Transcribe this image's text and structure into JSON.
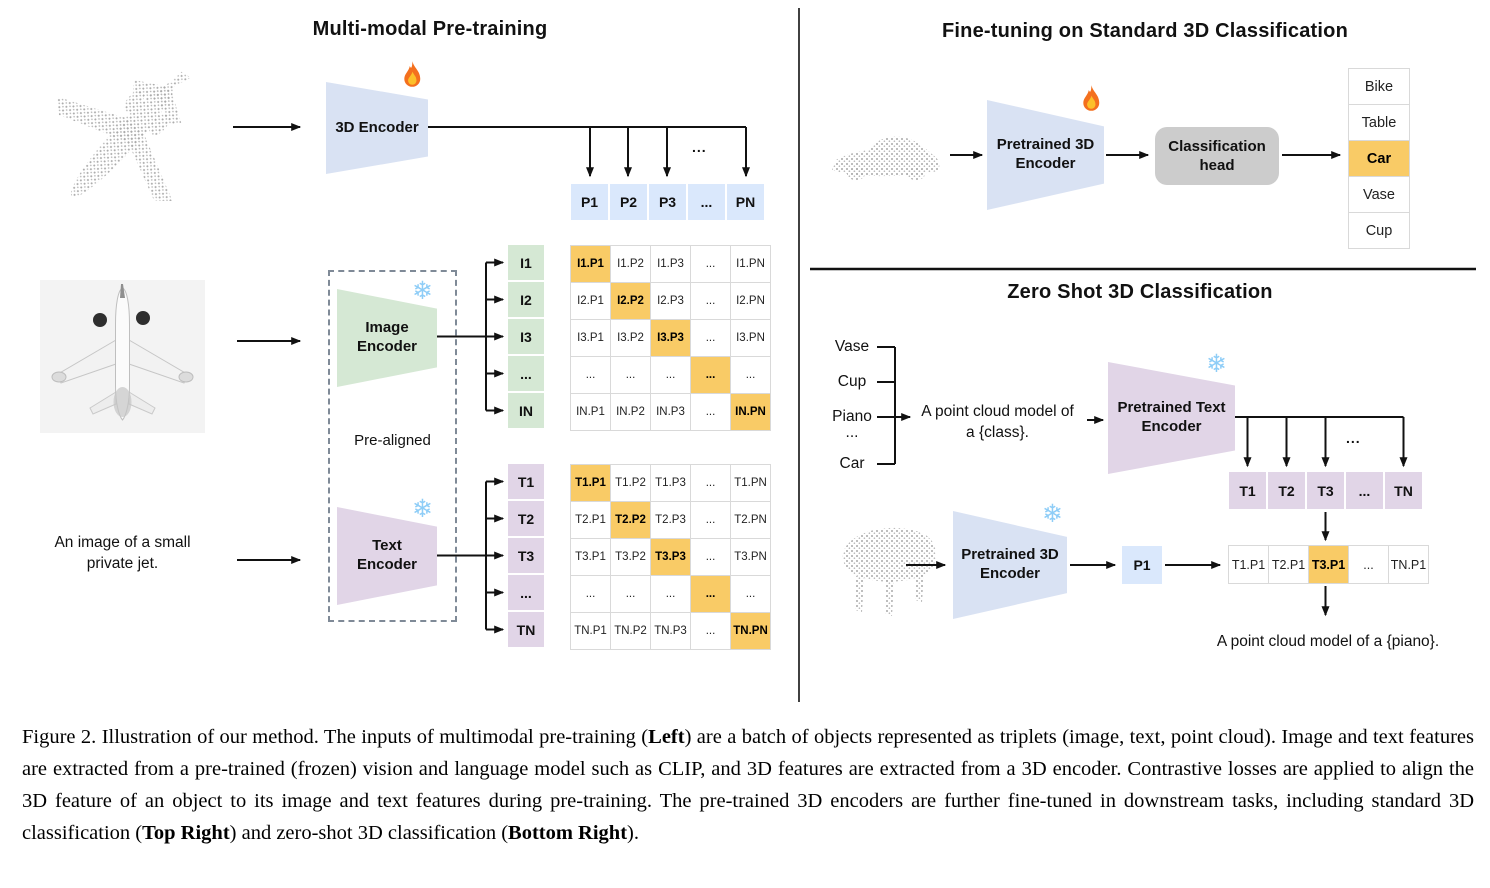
{
  "colors": {
    "orange": "#f9cb66",
    "blue": "#dae8fc",
    "blueshape": "#d9e2f3",
    "green": "#d5e8d4",
    "purple": "#e1d5e7",
    "gray": "#cccccc",
    "border": "#d9d9d9"
  },
  "left": {
    "title": "Multi-modal Pre-training",
    "encoder_3d_label": "3D Encoder",
    "pre_aligned_label": "Pre-aligned",
    "image_encoder_label": "Image\nEncoder",
    "text_encoder_label": "Text\nEncoder",
    "image_caption": "An image of a small\nprivate jet.",
    "p_row": [
      "P1",
      "P2",
      "P3",
      "...",
      "PN"
    ],
    "i_labels": [
      "I1",
      "I2",
      "I3",
      "...",
      "IN"
    ],
    "t_labels": [
      "T1",
      "T2",
      "T3",
      "...",
      "TN"
    ],
    "i_matrix": [
      [
        "I1.P1",
        "I1.P2",
        "I1.P3",
        "...",
        "I1.PN"
      ],
      [
        "I2.P1",
        "I2.P2",
        "I2.P3",
        "...",
        "I2.PN"
      ],
      [
        "I3.P1",
        "I3.P2",
        "I3.P3",
        "...",
        "I3.PN"
      ],
      [
        "...",
        "...",
        "...",
        "...",
        "..."
      ],
      [
        "IN.P1",
        "IN.P2",
        "IN.P3",
        "...",
        "IN.PN"
      ]
    ],
    "t_matrix": [
      [
        "T1.P1",
        "T1.P2",
        "T1.P3",
        "...",
        "T1.PN"
      ],
      [
        "T2.P1",
        "T2.P2",
        "T2.P3",
        "...",
        "T2.PN"
      ],
      [
        "T3.P1",
        "T3.P2",
        "T3.P3",
        "...",
        "T3.PN"
      ],
      [
        "...",
        "...",
        "...",
        "...",
        "..."
      ],
      [
        "TN.P1",
        "TN.P2",
        "TN.P3",
        "...",
        "TN.PN"
      ]
    ],
    "matrix_highlight": "diagonal",
    "branch_dots": "..."
  },
  "top_right": {
    "title": "Fine-tuning on Standard 3D Classification",
    "encoder_label": "Pretrained 3D\nEncoder",
    "head_label": "Classification\nhead",
    "classes": [
      "Bike",
      "Table",
      "Car",
      "Vase",
      "Cup"
    ],
    "highlight_index": 2
  },
  "bottom_right": {
    "title": "Zero Shot 3D Classification",
    "class_labels": [
      "Vase",
      "Cup",
      "Piano",
      "...",
      "Car"
    ],
    "prompt": "A point cloud model of\na {class}.",
    "text_encoder_label": "Pretrained Text\nEncoder",
    "encoder_3d_label": "Pretrained 3D\nEncoder",
    "p1_label": "P1",
    "t_row": [
      "T1",
      "T2",
      "T3",
      "...",
      "TN"
    ],
    "result_row": [
      "T1.P1",
      "T2.P1",
      "T3.P1",
      "...",
      "TN.P1"
    ],
    "result_highlight_index": 2,
    "result_caption": "A point cloud model of a {piano}.",
    "branch_dots": "..."
  },
  "caption": {
    "segments": [
      {
        "text": "Figure 2. Illustration of our method. The inputs of multimodal pre-training (",
        "bold": false
      },
      {
        "text": "Left",
        "bold": true
      },
      {
        "text": ") are a batch of objects represented as triplets (image, text, point cloud). Image and text features are extracted from a pre-trained (frozen) vision and language model such as CLIP, and 3D features are extracted from a 3D encoder. Contrastive losses are applied to align the 3D feature of an object to its image and text features during pre-training. The pre-trained 3D encoders are further fine-tuned in downstream tasks, including standard 3D classification (",
        "bold": false
      },
      {
        "text": "Top Right",
        "bold": true
      },
      {
        "text": ") and zero-shot 3D classification (",
        "bold": false
      },
      {
        "text": "Bottom Right",
        "bold": true
      },
      {
        "text": ").",
        "bold": false
      }
    ]
  }
}
